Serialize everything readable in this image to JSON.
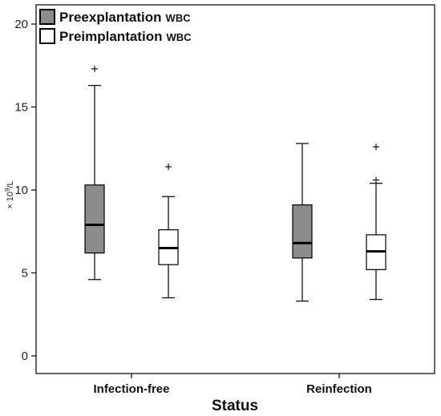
{
  "chart_data": {
    "type": "box",
    "xlabel": "Status",
    "ylabel": {
      "prefix": "× 10",
      "sup": "9",
      "suffix": "/L"
    },
    "ylim": [
      -1,
      21
    ],
    "yticks": [
      0,
      5,
      10,
      15,
      20
    ],
    "categories": [
      "Infection-free",
      "Reinfection"
    ],
    "legend": {
      "position": "top-left"
    },
    "series": [
      {
        "name": "Preexplantation",
        "name_suffix": "WBC",
        "color": "#8c8c8c",
        "boxes": [
          {
            "category": "Infection-free",
            "whisker_low": 4.6,
            "q1": 6.2,
            "median": 7.9,
            "q3": 10.3,
            "whisker_high": 16.3,
            "outliers": [
              17.3
            ]
          },
          {
            "category": "Reinfection",
            "whisker_low": 3.3,
            "q1": 5.9,
            "median": 6.8,
            "q3": 9.1,
            "whisker_high": 12.8,
            "outliers": []
          }
        ]
      },
      {
        "name": "Preimplantation",
        "name_suffix": "WBC",
        "color": "#ffffff",
        "boxes": [
          {
            "category": "Infection-free",
            "whisker_low": 3.5,
            "q1": 5.5,
            "median": 6.5,
            "q3": 7.6,
            "whisker_high": 9.6,
            "outliers": [
              11.4
            ]
          },
          {
            "category": "Reinfection",
            "whisker_low": 3.4,
            "q1": 5.2,
            "median": 6.3,
            "q3": 7.3,
            "whisker_high": 10.4,
            "outliers": [
              10.6,
              12.6
            ]
          }
        ]
      }
    ]
  }
}
